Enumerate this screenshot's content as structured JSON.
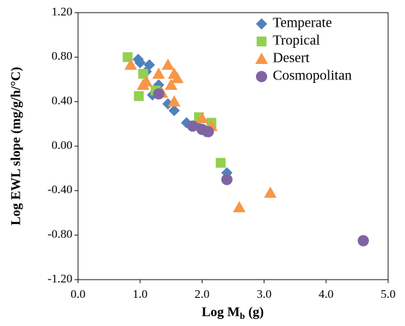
{
  "chart_data": {
    "type": "scatter",
    "xlabel": [
      "Log M",
      "b",
      " (g)"
    ],
    "ylabel": "Log EWL slope (mg/g/h/°C)",
    "xlim": [
      0,
      5
    ],
    "ylim": [
      -1.2,
      1.2
    ],
    "xticks": [
      {
        "value": 0,
        "label": "0.0"
      },
      {
        "value": 1,
        "label": "1.0"
      },
      {
        "value": 2,
        "label": "2.0"
      },
      {
        "value": 3,
        "label": "3.0"
      },
      {
        "value": 4,
        "label": "4.0"
      },
      {
        "value": 5,
        "label": "5.0"
      }
    ],
    "yticks": [
      {
        "value": -1.2,
        "label": "-1.20"
      },
      {
        "value": -0.8,
        "label": "-0.80"
      },
      {
        "value": -0.4,
        "label": "-0.40"
      },
      {
        "value": 0,
        "label": "0.00"
      },
      {
        "value": 0.4,
        "label": "0.40"
      },
      {
        "value": 0.8,
        "label": "0.80"
      },
      {
        "value": 1.2,
        "label": "1.20"
      }
    ],
    "legend": "top-right",
    "series": [
      {
        "name": "Temperate",
        "color": "#4f81bd",
        "marker": "diamond",
        "x": [
          0.97,
          1.0,
          1.1,
          1.15,
          1.2,
          1.3,
          1.45,
          1.55,
          1.75,
          1.95,
          2.05,
          2.4
        ],
        "values": [
          0.78,
          0.75,
          0.67,
          0.73,
          0.46,
          0.55,
          0.38,
          0.32,
          0.21,
          0.17,
          0.13,
          -0.24
        ]
      },
      {
        "name": "Tropical",
        "color": "#92d050",
        "marker": "square",
        "x": [
          0.8,
          0.98,
          1.05,
          1.25,
          1.95,
          2.15,
          2.3
        ],
        "values": [
          0.8,
          0.45,
          0.65,
          0.5,
          0.26,
          0.21,
          -0.15
        ]
      },
      {
        "name": "Desert",
        "color": "#f79646",
        "marker": "triangle",
        "x": [
          0.85,
          1.05,
          1.1,
          1.3,
          1.35,
          1.45,
          1.5,
          1.55,
          1.6,
          1.55,
          2.0,
          2.15,
          2.6,
          3.1
        ],
        "values": [
          0.73,
          0.55,
          0.58,
          0.65,
          0.48,
          0.73,
          0.55,
          0.65,
          0.61,
          0.4,
          0.25,
          0.18,
          -0.55,
          -0.42
        ]
      },
      {
        "name": "Cosmopolitan",
        "color": "#8064a2",
        "marker": "circle",
        "x": [
          1.3,
          1.85,
          2.0,
          2.1,
          2.4,
          4.6
        ],
        "values": [
          0.47,
          0.18,
          0.15,
          0.13,
          -0.3,
          -0.85
        ]
      }
    ]
  }
}
